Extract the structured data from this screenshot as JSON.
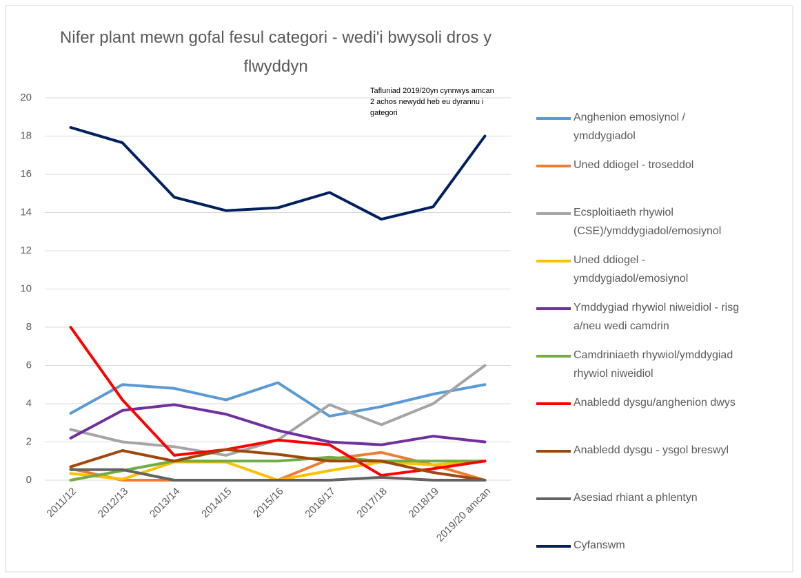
{
  "chart_data": {
    "type": "line",
    "title": "Nifer plant mewn gofal fesul categori - wedi'i bwysoli dros y\nflwyddyn",
    "annotation": "Tafluniad 2019/20yn cynnwys amcan\n2 achos newydd heb eu dyrannu i\ngategori",
    "categories": [
      "2011/12",
      "2012/13",
      "2013/14",
      "2014/15",
      "2015/16",
      "2016/17",
      "2017/18",
      "2018/19",
      "2019/20 amcan"
    ],
    "ylim": [
      0,
      20
    ],
    "yticks": [
      0,
      2,
      4,
      6,
      8,
      10,
      12,
      14,
      16,
      18,
      20
    ],
    "grid": true,
    "legend": "right",
    "series": [
      {
        "name": "Anghenion emosiynol /\nymddygiadol",
        "color": "#5b9bd5",
        "values": [
          3.5,
          5.0,
          4.8,
          4.2,
          5.1,
          3.35,
          3.85,
          4.5,
          5.0
        ]
      },
      {
        "name": "Uned ddiogel - troseddol",
        "color": "#ed7d31",
        "values": [
          0.6,
          0,
          0,
          0,
          0,
          1.1,
          1.45,
          0.8,
          0
        ]
      },
      {
        "name": "Ecsploitiaeth rhywiol\n(CSE)/ymddygiadol/emosiynol",
        "color": "#a5a5a5",
        "values": [
          2.65,
          2.0,
          1.75,
          1.3,
          2.1,
          3.95,
          2.9,
          4.0,
          6.0
        ]
      },
      {
        "name": "Uned ddiogel -\nymddygiadol/emosiynol",
        "color": "#ffc000",
        "values": [
          0.35,
          0.05,
          0.95,
          0.95,
          0,
          0.5,
          0.95,
          0.8,
          1.0
        ]
      },
      {
        "name": "Ymddygiad rhywiol niweidiol - risg\na/neu wedi camdrin",
        "color": "#7030a0",
        "values": [
          2.2,
          3.65,
          3.95,
          3.45,
          2.6,
          2.0,
          1.85,
          2.3,
          2.0
        ]
      },
      {
        "name": "Camdriniaeth rhywiol/ymddygiad\nrhywiol niweidiol",
        "color": "#70ad47",
        "values": [
          0,
          0.5,
          1.0,
          1.0,
          1.0,
          1.2,
          1.0,
          1.0,
          1.0
        ]
      },
      {
        "name": "Anabledd dysgu/anghenion dwys",
        "color": "#ff0000",
        "values": [
          8.0,
          4.2,
          1.3,
          1.6,
          2.1,
          1.85,
          0.25,
          0.6,
          1.0
        ]
      },
      {
        "name": "Anabledd dysgu - ysgol breswyl",
        "color": "#9e480e",
        "values": [
          0.7,
          1.55,
          1.0,
          1.6,
          1.35,
          1.0,
          1.0,
          0.4,
          0
        ]
      },
      {
        "name": "Asesiad rhiant a phlentyn",
        "color": "#636363",
        "values": [
          0.55,
          0.55,
          0,
          0,
          0,
          0,
          0.15,
          0,
          0
        ]
      },
      {
        "name": "Cyfanswm",
        "color": "#002060",
        "values": [
          18.45,
          17.65,
          14.8,
          14.1,
          14.25,
          15.05,
          13.65,
          14.3,
          18.0
        ]
      }
    ]
  }
}
